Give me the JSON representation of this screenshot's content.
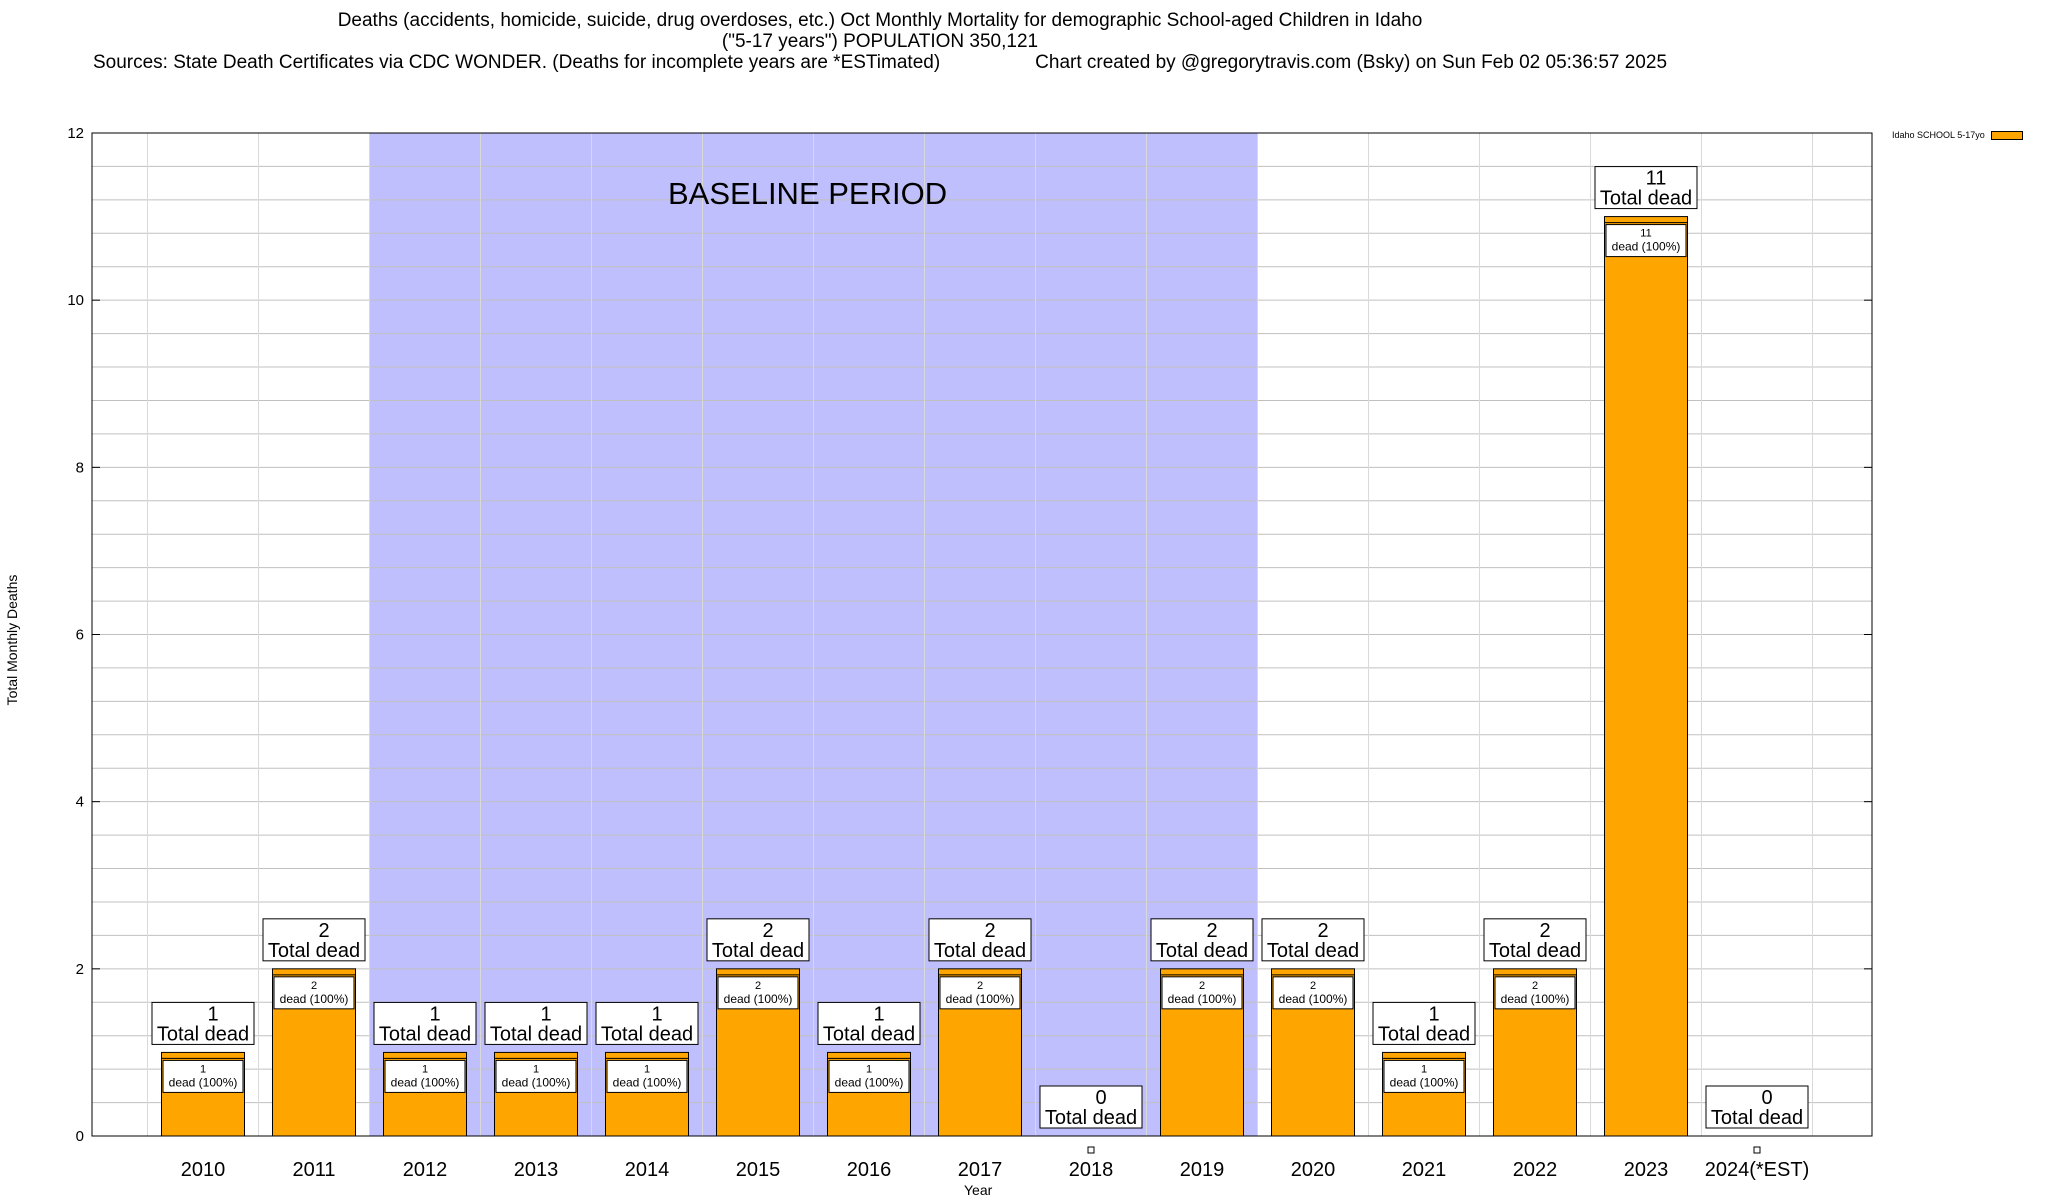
{
  "chart_data": {
    "type": "bar",
    "title": "Deaths (accidents, homicide, suicide, drug overdoses, etc.) Oct Monthly Mortality for demographic School-aged Children in Idaho",
    "subtitle": "(\"5-17 years\") POPULATION 350,121",
    "source_line": "Sources: State Death Certificates via CDC WONDER. (Deaths for incomplete years are *ESTimated)",
    "credit_line": "Chart created by @gregorytravis.com (Bsky) on Sun Feb 02 05:36:57 2025",
    "xlabel": "Year",
    "ylabel": "Total Monthly Deaths",
    "ylim": [
      0,
      12
    ],
    "yticks": [
      "0",
      "2",
      "4",
      "6",
      "8",
      "10",
      "12"
    ],
    "grid": true,
    "legend_position": "top-right",
    "categories": [
      "2010",
      "2011",
      "2012",
      "2013",
      "2014",
      "2015",
      "2016",
      "2017",
      "2018",
      "2019",
      "2020",
      "2021",
      "2022",
      "2023",
      "2024(*EST)"
    ],
    "series": [
      {
        "name": "Idaho SCHOOL 5-17yo",
        "color": "#ffa500",
        "values": [
          1,
          2,
          1,
          1,
          1,
          2,
          1,
          2,
          0,
          2,
          2,
          1,
          2,
          11,
          0
        ]
      }
    ],
    "total_label_suffix": "Total dead",
    "segment_label_suffix": "dead (100%)",
    "shaded_region": {
      "label": "BASELINE PERIOD",
      "from_category": "2012",
      "to_category": "2019",
      "color": "#bfbffd"
    }
  }
}
